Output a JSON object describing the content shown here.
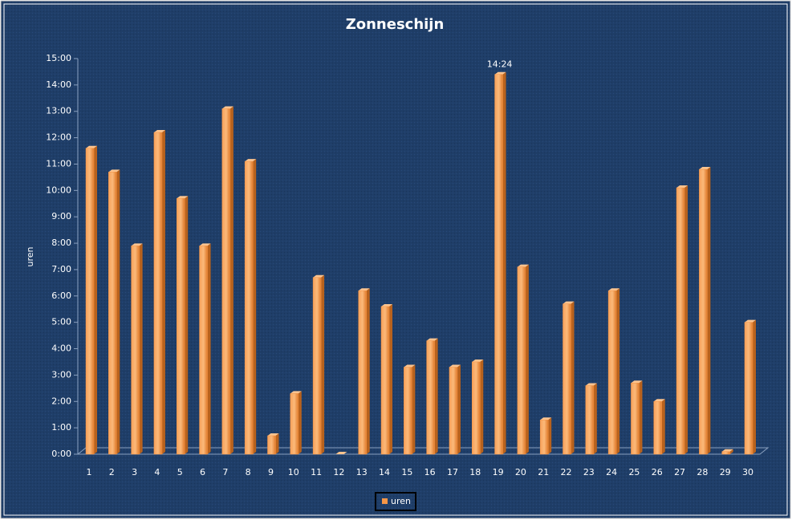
{
  "chart_data": {
    "type": "bar",
    "title": "Zonneschijn",
    "y_label": "uren",
    "categories": [
      "1",
      "2",
      "3",
      "4",
      "5",
      "6",
      "7",
      "8",
      "9",
      "10",
      "11",
      "12",
      "13",
      "14",
      "15",
      "16",
      "17",
      "18",
      "19",
      "20",
      "21",
      "22",
      "23",
      "24",
      "25",
      "26",
      "27",
      "28",
      "29",
      "30"
    ],
    "series": [
      {
        "name": "uren",
        "color": "#f79646",
        "values": [
          11.6,
          10.7,
          7.9,
          12.2,
          9.7,
          7.9,
          13.1,
          11.1,
          0.7,
          2.3,
          6.7,
          0,
          6.2,
          5.6,
          3.3,
          4.3,
          3.3,
          3.5,
          14.4,
          7.1,
          1.3,
          5.7,
          2.6,
          6.2,
          2.7,
          2.0,
          10.1,
          10.8,
          0.1,
          5.0
        ],
        "value_labels": [
          null,
          null,
          null,
          null,
          null,
          null,
          null,
          null,
          null,
          null,
          null,
          null,
          null,
          null,
          null,
          null,
          null,
          null,
          "14:24",
          null,
          null,
          null,
          null,
          null,
          null,
          null,
          null,
          null,
          null,
          null
        ]
      }
    ],
    "ylim": [
      0,
      15
    ],
    "yticks": [
      {
        "value": 0,
        "label": "0:00"
      },
      {
        "value": 1,
        "label": "1:00"
      },
      {
        "value": 2,
        "label": "2:00"
      },
      {
        "value": 3,
        "label": "3:00"
      },
      {
        "value": 4,
        "label": "4:00"
      },
      {
        "value": 5,
        "label": "5:00"
      },
      {
        "value": 6,
        "label": "6:00"
      },
      {
        "value": 7,
        "label": "7:00"
      },
      {
        "value": 8,
        "label": "8:00"
      },
      {
        "value": 9,
        "label": "9:00"
      },
      {
        "value": 10,
        "label": "10:00"
      },
      {
        "value": 11,
        "label": "11:00"
      },
      {
        "value": 12,
        "label": "12:00"
      },
      {
        "value": 13,
        "label": "13:00"
      },
      {
        "value": 14,
        "label": "14:00"
      },
      {
        "value": 15,
        "label": "15:00"
      }
    ],
    "grid": false,
    "legend": "bottom"
  }
}
